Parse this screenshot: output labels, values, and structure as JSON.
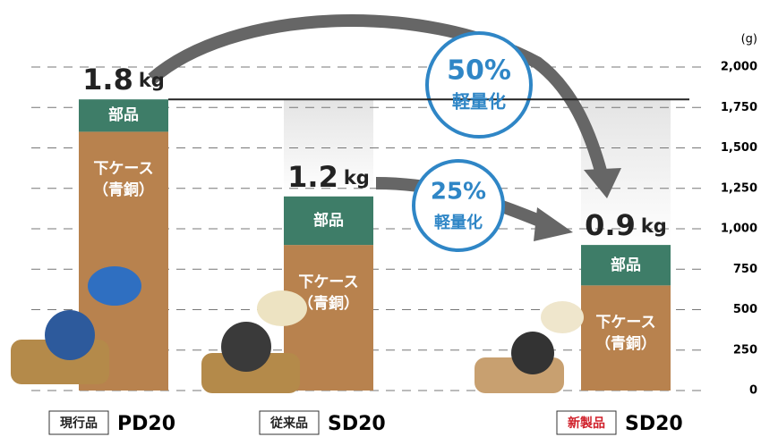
{
  "chart_data": {
    "type": "stacked-bar",
    "y_unit": "(g)",
    "categories": [
      "PD20",
      "SD20",
      "SD20"
    ],
    "category_tags": [
      "現行品",
      "従来品",
      "新製品"
    ],
    "series": [
      {
        "name": "下ケース\n（青銅）",
        "color": "#b8824e",
        "values": [
          1600,
          900,
          650
        ]
      },
      {
        "name": "部品",
        "color": "#3e7d68",
        "values": [
          200,
          300,
          250
        ]
      }
    ],
    "totals": {
      "values": [
        1800,
        1200,
        900
      ],
      "value_labels": [
        "1.8",
        "1.2",
        "0.9"
      ],
      "unit": "kg"
    },
    "annotations": [
      [
        "50%",
        "軽量化"
      ],
      [
        "25%",
        "軽量化"
      ]
    ],
    "ylim": [
      0,
      2000
    ],
    "yticks": [
      0,
      250,
      500,
      750,
      {
        "value": 1000,
        "label": "1,000"
      },
      {
        "value": 1250,
        "label": "1,250"
      },
      {
        "value": 1500,
        "label": "1,500"
      },
      {
        "value": 1750,
        "label": "1,750"
      },
      {
        "value": 2000,
        "label": "2,000"
      }
    ],
    "grid": true
  }
}
